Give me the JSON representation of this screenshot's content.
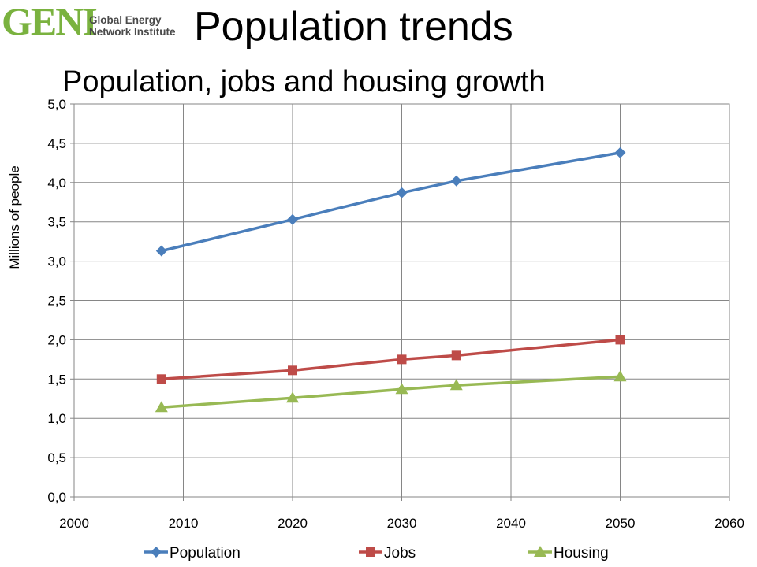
{
  "logo": {
    "mark": "GENI",
    "line1": "Global Energy",
    "line2": "Network Institute"
  },
  "page_title": "Population trends",
  "colors": {
    "population": "#4a7ebb",
    "jobs": "#be4b48",
    "housing": "#98b954",
    "grid": "#868686",
    "logo": "#7ab23f"
  },
  "chart_data": {
    "type": "line",
    "title": "Population, jobs and housing growth",
    "xlabel": "",
    "ylabel": "Millions of people",
    "xlim": [
      2000,
      2060
    ],
    "ylim": [
      0,
      5
    ],
    "x_ticks": [
      2000,
      2010,
      2020,
      2030,
      2040,
      2050,
      2060
    ],
    "y_ticks": [
      "0,0",
      "0,5",
      "1,0",
      "1,5",
      "2,0",
      "2,5",
      "3,0",
      "3,5",
      "4,0",
      "4,5",
      "5,0"
    ],
    "grid": true,
    "legend_position": "bottom",
    "x": [
      2008,
      2020,
      2030,
      2035,
      2050
    ],
    "series": [
      {
        "name": "Population",
        "marker": "diamond",
        "color": "#4a7ebb",
        "values": [
          3.13,
          3.53,
          3.87,
          4.02,
          4.38
        ]
      },
      {
        "name": "Jobs",
        "marker": "square",
        "color": "#be4b48",
        "values": [
          1.5,
          1.61,
          1.75,
          1.8,
          2.0
        ]
      },
      {
        "name": "Housing",
        "marker": "triangle",
        "color": "#98b954",
        "values": [
          1.14,
          1.26,
          1.37,
          1.42,
          1.53
        ]
      }
    ]
  }
}
